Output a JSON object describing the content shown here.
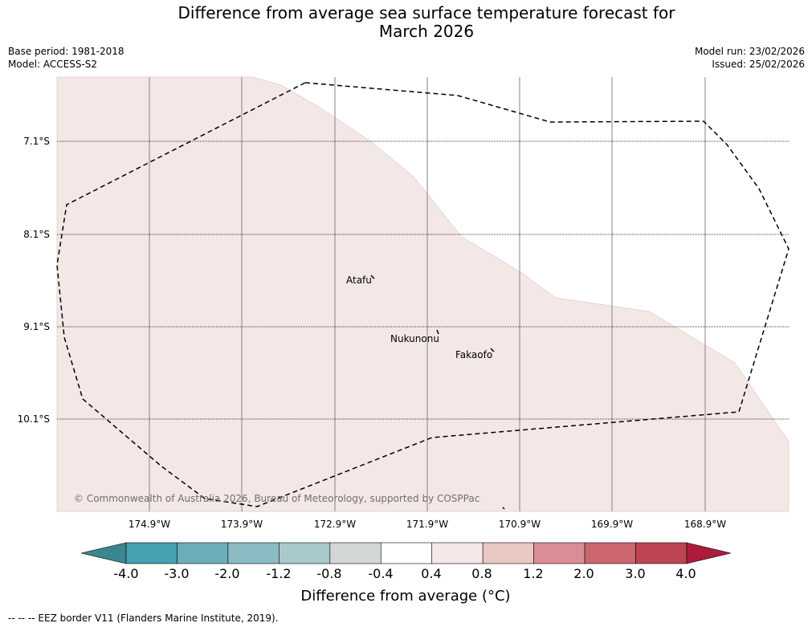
{
  "title": {
    "line1": "Difference from average sea surface temperature forecast for",
    "line2": "March 2026"
  },
  "meta": {
    "base_period": "Base period: 1981-2018",
    "model": "Model: ACCESS-S2",
    "model_run": "Model run: 23/02/2026",
    "issued": "Issued: 25/02/2026"
  },
  "map": {
    "lat_labels": [
      "7.1°S",
      "8.1°S",
      "9.1°S",
      "10.1°S"
    ],
    "lon_labels": [
      "174.9°W",
      "173.9°W",
      "172.9°W",
      "171.9°W",
      "170.9°W",
      "169.9°W",
      "168.9°W"
    ],
    "places": [
      "Atafu",
      "Nukunonu",
      "Fakaofo"
    ],
    "copyright": "© Commonwealth of Australia 2026, Bureau of Meteorology, supported by COSPPac",
    "colors": {
      "anomaly_fill": "#f4e8e7",
      "ocean_clear": "#ffffff",
      "grid": "#888888"
    }
  },
  "colorbar": {
    "ticks": [
      "-4.0",
      "-3.0",
      "-2.0",
      "-1.2",
      "-0.8",
      "-0.4",
      "0.4",
      "0.8",
      "1.2",
      "2.0",
      "3.0",
      "4.0"
    ],
    "colors": [
      "#46a1b0",
      "#6aaebb",
      "#8bbbc3",
      "#a9c9cc",
      "#d3d6d6",
      "#ffffff",
      "#f5e8e6",
      "#e9c7c3",
      "#d98e95",
      "#cc6771",
      "#bf4453"
    ],
    "under_color": "#3b8791",
    "over_color": "#ad1c38",
    "label": "Difference from average (°C)"
  },
  "footer": "-- -- -- EEZ border V11 (Flanders Marine Institute, 2019)."
}
